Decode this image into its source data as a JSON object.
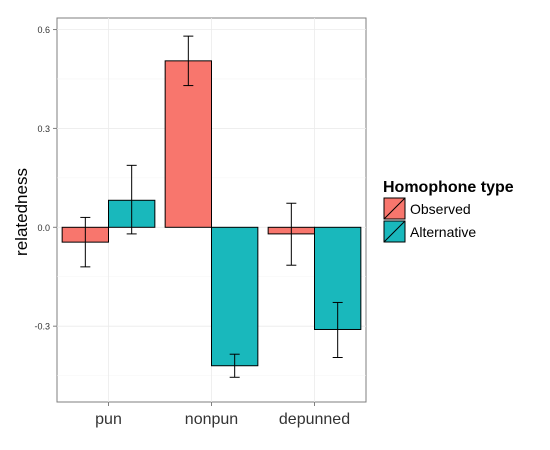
{
  "chart_data": {
    "type": "bar",
    "categories": [
      "pun",
      "nonpun",
      "depunned"
    ],
    "series": [
      {
        "name": "Observed",
        "color": "#F8766D",
        "values": [
          -0.045,
          0.505,
          -0.02
        ],
        "error_low": [
          -0.12,
          0.43,
          -0.115
        ],
        "error_high": [
          0.03,
          0.58,
          0.073
        ]
      },
      {
        "name": "Alternative",
        "color": "#19B8BC",
        "values": [
          0.082,
          -0.42,
          -0.31
        ],
        "error_low": [
          -0.02,
          -0.455,
          -0.395
        ],
        "error_high": [
          0.188,
          -0.385,
          -0.228
        ]
      }
    ],
    "xlabel": "",
    "ylabel": "relatedness",
    "ylim": [
      -0.53,
      0.635
    ],
    "yticks": [
      0.6,
      0.3,
      0.0,
      -0.3
    ],
    "ytick_labels": [
      "0.6",
      "0.3",
      "0.0",
      "-0.3"
    ],
    "legend_title": "Homophone type",
    "legend_position": "right",
    "grid": true
  }
}
